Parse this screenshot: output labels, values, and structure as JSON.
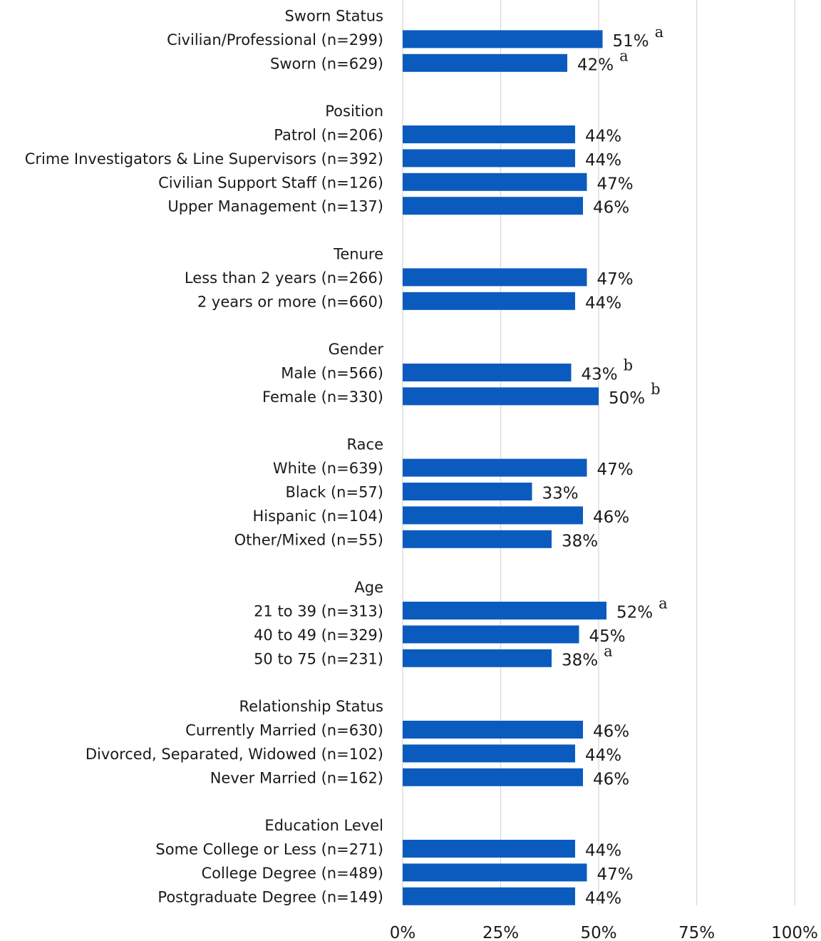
{
  "chart_data": {
    "type": "bar",
    "orientation": "horizontal",
    "title": "",
    "xlabel": "",
    "ylabel": "",
    "xlim": [
      0,
      100
    ],
    "x_ticks": [
      "0%",
      "25%",
      "50%",
      "75%",
      "100%"
    ],
    "grid": true,
    "legend": "none",
    "bar_color": "#0b5bbf",
    "groups": [
      {
        "name": "Sworn Status",
        "items": [
          {
            "label": "Civilian/Professional (n=299)",
            "value": 51,
            "value_label": "51%",
            "marker": "a"
          },
          {
            "label": "Sworn (n=629)",
            "value": 42,
            "value_label": "42%",
            "marker": "a"
          }
        ]
      },
      {
        "name": "Position",
        "items": [
          {
            "label": "Patrol (n=206)",
            "value": 44,
            "value_label": "44%",
            "marker": ""
          },
          {
            "label": "Crime Investigators & Line Supervisors (n=392)",
            "value": 44,
            "value_label": "44%",
            "marker": ""
          },
          {
            "label": "Civilian Support Staff (n=126)",
            "value": 47,
            "value_label": "47%",
            "marker": ""
          },
          {
            "label": "Upper Management (n=137)",
            "value": 46,
            "value_label": "46%",
            "marker": ""
          }
        ]
      },
      {
        "name": "Tenure",
        "items": [
          {
            "label": "Less than 2 years (n=266)",
            "value": 47,
            "value_label": "47%",
            "marker": ""
          },
          {
            "label": "2 years or more (n=660)",
            "value": 44,
            "value_label": "44%",
            "marker": ""
          }
        ]
      },
      {
        "name": "Gender",
        "items": [
          {
            "label": "Male (n=566)",
            "value": 43,
            "value_label": "43%",
            "marker": "b"
          },
          {
            "label": "Female (n=330)",
            "value": 50,
            "value_label": "50%",
            "marker": "b"
          }
        ]
      },
      {
        "name": "Race",
        "items": [
          {
            "label": "White (n=639)",
            "value": 47,
            "value_label": "47%",
            "marker": ""
          },
          {
            "label": "Black (n=57)",
            "value": 33,
            "value_label": "33%",
            "marker": ""
          },
          {
            "label": "Hispanic (n=104)",
            "value": 46,
            "value_label": "46%",
            "marker": ""
          },
          {
            "label": "Other/Mixed (n=55)",
            "value": 38,
            "value_label": "38%",
            "marker": ""
          }
        ]
      },
      {
        "name": "Age",
        "items": [
          {
            "label": "21 to 39 (n=313)",
            "value": 52,
            "value_label": "52%",
            "marker": "a"
          },
          {
            "label": "40 to 49 (n=329)",
            "value": 45,
            "value_label": "45%",
            "marker": ""
          },
          {
            "label": "50 to 75 (n=231)",
            "value": 38,
            "value_label": "38%",
            "marker": "a"
          }
        ]
      },
      {
        "name": "Relationship Status",
        "items": [
          {
            "label": "Currently Married (n=630)",
            "value": 46,
            "value_label": "46%",
            "marker": ""
          },
          {
            "label": "Divorced, Separated, Widowed (n=102)",
            "value": 44,
            "value_label": "44%",
            "marker": ""
          },
          {
            "label": "Never Married (n=162)",
            "value": 46,
            "value_label": "46%",
            "marker": ""
          }
        ]
      },
      {
        "name": "Education Level",
        "items": [
          {
            "label": "Some College or Less (n=271)",
            "value": 44,
            "value_label": "44%",
            "marker": ""
          },
          {
            "label": "College Degree (n=489)",
            "value": 47,
            "value_label": "47%",
            "marker": ""
          },
          {
            "label": "Postgraduate Degree (n=149)",
            "value": 44,
            "value_label": "44%",
            "marker": ""
          }
        ]
      }
    ]
  }
}
